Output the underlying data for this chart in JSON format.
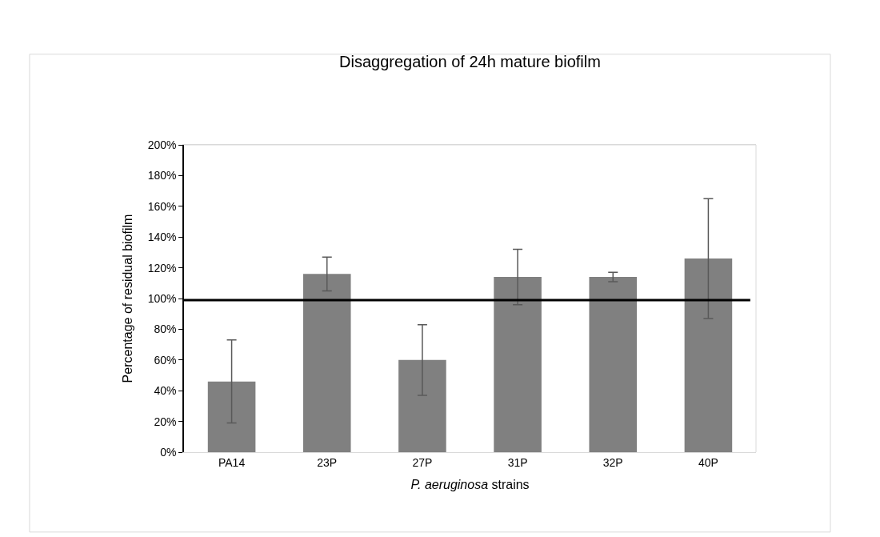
{
  "chart_data": {
    "type": "bar",
    "title": "Disaggregation of 24h mature biofilm",
    "xlabel": "P. aeruginosa strains",
    "ylabel": "Percentage of residual biofilm",
    "categories": [
      "PA14",
      "23P",
      "27P",
      "31P",
      "32P",
      "40P"
    ],
    "values": [
      46,
      116,
      60,
      114,
      114,
      126
    ],
    "errors": [
      27,
      11,
      23,
      18,
      3,
      39
    ],
    "color": "#808080",
    "ylim": [
      0,
      200
    ],
    "yticks": [
      {
        "value": 0,
        "label": "0%"
      },
      {
        "value": 20,
        "label": "20%"
      },
      {
        "value": 40,
        "label": "40%"
      },
      {
        "value": 60,
        "label": "60%"
      },
      {
        "value": 80,
        "label": "80%"
      },
      {
        "value": 100,
        "label": "100%"
      },
      {
        "value": 120,
        "label": "120%"
      },
      {
        "value": 140,
        "label": "140%"
      },
      {
        "value": 160,
        "label": "160%"
      },
      {
        "value": 180,
        "label": "180%"
      },
      {
        "value": 200,
        "label": "200%"
      }
    ],
    "ref_lines": [
      {
        "axis": "y",
        "value": 99,
        "color": "#000000"
      }
    ],
    "legend": false
  }
}
